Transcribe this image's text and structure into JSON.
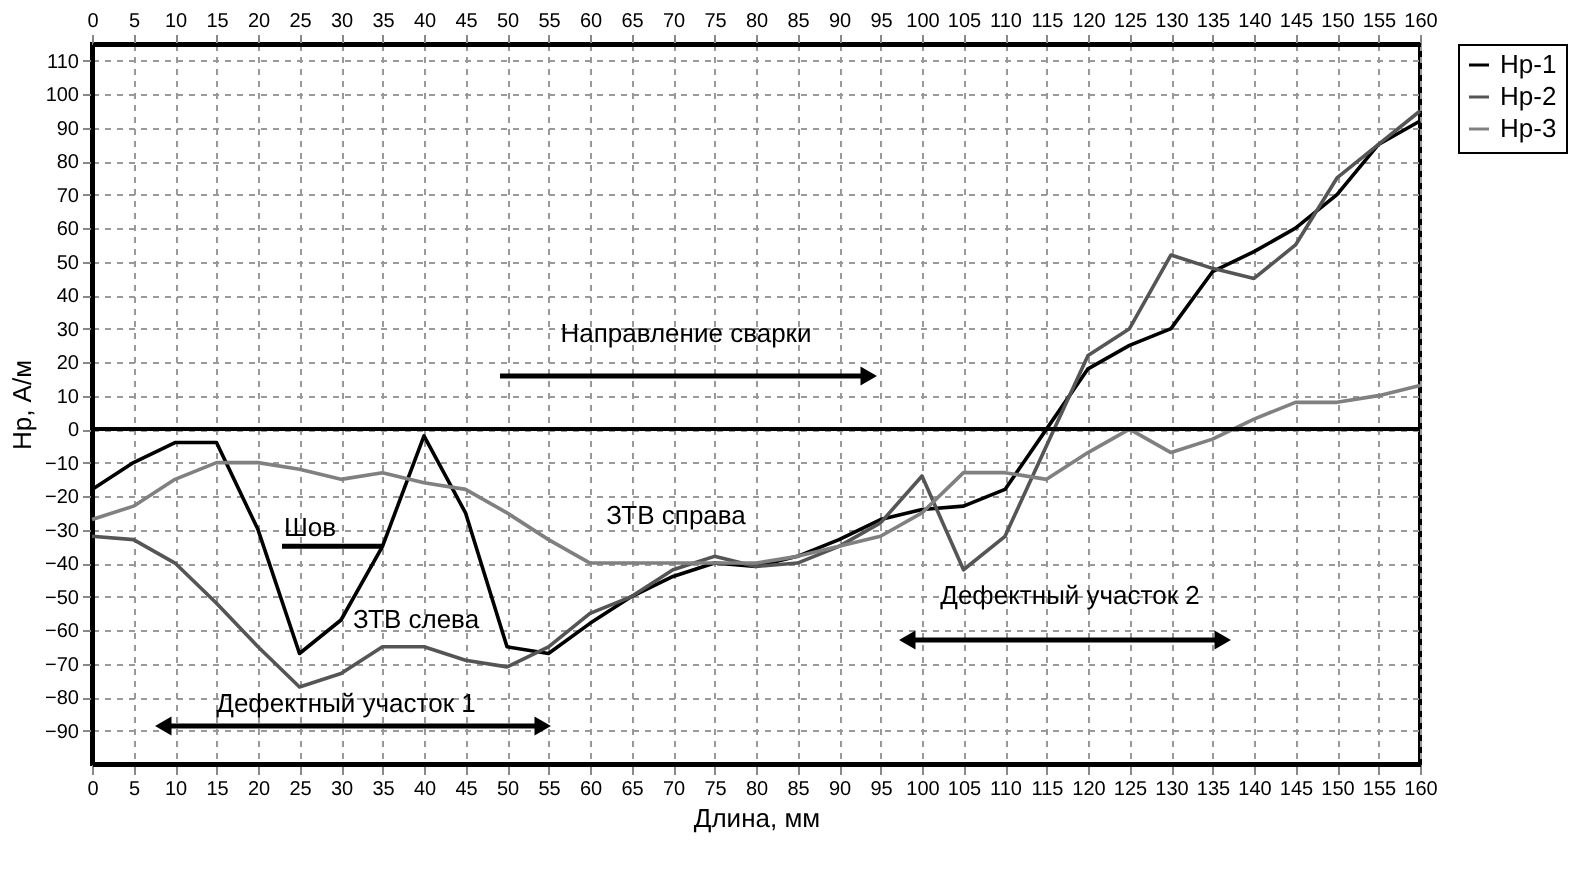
{
  "chart_data": {
    "type": "line",
    "xlabel": "Длина, мм",
    "ylabel": "Нр, А/м",
    "x": [
      0,
      5,
      10,
      15,
      20,
      25,
      30,
      35,
      40,
      45,
      50,
      55,
      60,
      65,
      70,
      75,
      80,
      85,
      90,
      95,
      100,
      105,
      110,
      115,
      120,
      125,
      130,
      135,
      140,
      145,
      150,
      155,
      160
    ],
    "series": [
      {
        "name": "Нр-1",
        "color": "#000000",
        "values": [
          -18,
          -10,
          -4,
          -4,
          -30,
          -67,
          -57,
          -35,
          -2,
          -25,
          -65,
          -67,
          -58,
          -50,
          -44,
          -40,
          -41,
          -38,
          -33,
          -27,
          -24,
          -23,
          -18,
          0,
          18,
          25,
          30,
          47,
          53,
          60,
          70,
          85,
          92
        ]
      },
      {
        "name": "Нр-2",
        "color": "#555555",
        "values": [
          -32,
          -33,
          -40,
          -52,
          -65,
          -77,
          -73,
          -65,
          -65,
          -69,
          -71,
          -65,
          -55,
          -50,
          -42,
          -38,
          -41,
          -40,
          -35,
          -28,
          -14,
          -42,
          -32,
          -5,
          22,
          30,
          52,
          48,
          45,
          55,
          75,
          85,
          95
        ]
      },
      {
        "name": "Нр-3",
        "color": "#808080",
        "values": [
          -27,
          -23,
          -15,
          -10,
          -10,
          -12,
          -15,
          -13,
          -16,
          -18,
          -25,
          -33,
          -40,
          -40,
          -40,
          -40,
          -40,
          -38,
          -35,
          -32,
          -25,
          -13,
          -13,
          -15,
          -7,
          0,
          -7,
          -3,
          3,
          8,
          8,
          10,
          13
        ]
      }
    ],
    "xlim": [
      0,
      160
    ],
    "xticks": [
      0,
      5,
      10,
      15,
      20,
      25,
      30,
      35,
      40,
      45,
      50,
      55,
      60,
      65,
      70,
      75,
      80,
      85,
      90,
      95,
      100,
      105,
      110,
      115,
      120,
      125,
      130,
      135,
      140,
      145,
      150,
      155,
      160
    ],
    "x2lim": [
      0,
      160
    ],
    "x2ticks": [
      0,
      5,
      10,
      15,
      20,
      25,
      30,
      35,
      40,
      45,
      50,
      55,
      60,
      65,
      70,
      75,
      80,
      85,
      90,
      95,
      100,
      105,
      110,
      115,
      120,
      125,
      130,
      135,
      140,
      145,
      150,
      155,
      160
    ],
    "ylim": [
      -100,
      115
    ],
    "yticks": [
      -90,
      -80,
      -70,
      -60,
      -50,
      -40,
      -30,
      -20,
      -10,
      0,
      10,
      20,
      30,
      40,
      50,
      60,
      70,
      80,
      90,
      100,
      110
    ],
    "ref_lines": [
      {
        "axis": "y",
        "value": 0,
        "color": "#000000"
      }
    ],
    "annotations": [
      "Направление сварки",
      {
        "text": "Шов",
        "x": 35,
        "y": -35
      },
      "ЗТВ справа",
      "ЗТВ слева",
      "Дефектный участок 1",
      "Дефектный участок 2"
    ],
    "grid": true,
    "legend": "top right",
    "marker": "none",
    "line_style": "solid"
  }
}
